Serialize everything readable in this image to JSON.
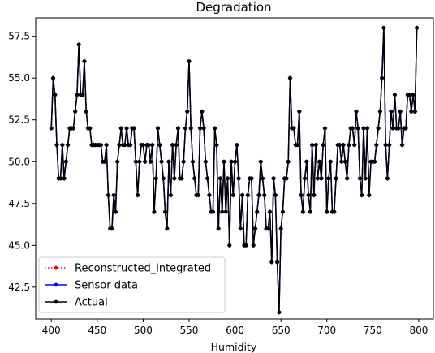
{
  "chart_data": {
    "type": "line",
    "title": "Degradation",
    "xlabel": "Humidity",
    "ylabel": "",
    "xlim": [
      383,
      816
    ],
    "ylim": [
      40.6,
      58.6
    ],
    "xticks": [
      400,
      450,
      500,
      550,
      600,
      650,
      700,
      750,
      800
    ],
    "yticks": [
      42.5,
      45.0,
      47.5,
      50.0,
      52.5,
      55.0,
      57.5
    ],
    "legend_position": "lower-left",
    "x": [
      400,
      402,
      404,
      406,
      408,
      410,
      412,
      414,
      416,
      418,
      420,
      422,
      424,
      426,
      428,
      430,
      432,
      434,
      436,
      438,
      440,
      442,
      444,
      446,
      448,
      450,
      452,
      454,
      456,
      458,
      460,
      462,
      464,
      466,
      468,
      470,
      472,
      474,
      476,
      478,
      480,
      482,
      484,
      486,
      488,
      490,
      492,
      494,
      496,
      498,
      500,
      502,
      504,
      506,
      508,
      510,
      512,
      514,
      516,
      518,
      520,
      522,
      524,
      526,
      528,
      530,
      532,
      534,
      536,
      538,
      540,
      542,
      544,
      546,
      548,
      550,
      552,
      554,
      556,
      558,
      560,
      562,
      564,
      566,
      568,
      570,
      572,
      574,
      576,
      578,
      580,
      582,
      584,
      586,
      588,
      590,
      592,
      594,
      596,
      598,
      600,
      602,
      604,
      606,
      608,
      610,
      612,
      614,
      616,
      618,
      620,
      622,
      624,
      626,
      628,
      630,
      632,
      634,
      636,
      638,
      640,
      642,
      644,
      646,
      648,
      650,
      652,
      654,
      656,
      658,
      660,
      662,
      664,
      666,
      668,
      670,
      672,
      674,
      676,
      678,
      680,
      682,
      684,
      686,
      688,
      690,
      692,
      694,
      696,
      698,
      700,
      702,
      704,
      706,
      708,
      710,
      712,
      714,
      716,
      718,
      720,
      722,
      724,
      726,
      728,
      730,
      732,
      734,
      736,
      738,
      740,
      742,
      744,
      746,
      748,
      750,
      752,
      754,
      756,
      758,
      760,
      762,
      764,
      766,
      768,
      770,
      772,
      774,
      776,
      778,
      780,
      782,
      784,
      786,
      788,
      790,
      792,
      794,
      796,
      798
    ],
    "series": [
      {
        "name": "Reconstructed_integrated",
        "color": "#ff0000",
        "style": "dotted",
        "marker": "diamond",
        "values": [
          52,
          55,
          54,
          51,
          49,
          49,
          51,
          49,
          50,
          51,
          52,
          52,
          52,
          53,
          54,
          57,
          54,
          54,
          56,
          53,
          52,
          52,
          51,
          51,
          51,
          51,
          51,
          51,
          50,
          50,
          51,
          48,
          46,
          46,
          48,
          47,
          50,
          51,
          52,
          51,
          51,
          52,
          51,
          51,
          52,
          52,
          50,
          48,
          50,
          51,
          51,
          50,
          51,
          51,
          50,
          51,
          47,
          49,
          52,
          51,
          50,
          49,
          47,
          46,
          50,
          48,
          51,
          49,
          51,
          52,
          49,
          49,
          50,
          52,
          53,
          56,
          52,
          50,
          49,
          48,
          48,
          52,
          53,
          52,
          50,
          49,
          48,
          47,
          47,
          52,
          51,
          46,
          49,
          47,
          50,
          47,
          49,
          45,
          50,
          48,
          50,
          51,
          49,
          46,
          48,
          45,
          45,
          48,
          49,
          49,
          45,
          46,
          47,
          48,
          50,
          49,
          48,
          46,
          46,
          47,
          44,
          49,
          48,
          44,
          41,
          46,
          47,
          49,
          49,
          50,
          55,
          52,
          52,
          51,
          51,
          53,
          48,
          47,
          49,
          50,
          48,
          47,
          51,
          48,
          51,
          49,
          50,
          49,
          51,
          52,
          47,
          49,
          50,
          47,
          47,
          49,
          51,
          51,
          50,
          51,
          50,
          49,
          51,
          52,
          52,
          51,
          53,
          52,
          49,
          48,
          52,
          49,
          52,
          48,
          50,
          50,
          50,
          51,
          52,
          53,
          55,
          58,
          51,
          49,
          51,
          53,
          52,
          54,
          52,
          52,
          53,
          51,
          52,
          52,
          54,
          54,
          53,
          54,
          53,
          58
        ]
      },
      {
        "name": "Sensor data",
        "color": "#0000ff",
        "style": "solid",
        "marker": "circle",
        "values": [
          52,
          55,
          54,
          51,
          49,
          49,
          51,
          49,
          50,
          51,
          52,
          52,
          52,
          53,
          54,
          57,
          54,
          54,
          56,
          53,
          52,
          52,
          51,
          51,
          51,
          51,
          51,
          51,
          50,
          50,
          51,
          48,
          46,
          46,
          48,
          47,
          50,
          51,
          52,
          51,
          51,
          52,
          51,
          51,
          52,
          52,
          50,
          48,
          50,
          51,
          51,
          50,
          51,
          51,
          50,
          51,
          47,
          49,
          52,
          51,
          50,
          49,
          47,
          46,
          50,
          48,
          51,
          49,
          51,
          52,
          49,
          49,
          50,
          52,
          53,
          56,
          52,
          50,
          49,
          48,
          48,
          52,
          53,
          52,
          50,
          49,
          48,
          47,
          47,
          52,
          51,
          46,
          49,
          47,
          50,
          47,
          49,
          45,
          50,
          48,
          50,
          51,
          49,
          46,
          48,
          45,
          45,
          48,
          49,
          49,
          45,
          46,
          47,
          48,
          50,
          49,
          48,
          46,
          46,
          47,
          44,
          49,
          48,
          44,
          41,
          46,
          47,
          49,
          49,
          50,
          55,
          52,
          52,
          51,
          51,
          53,
          48,
          47,
          49,
          50,
          48,
          47,
          51,
          48,
          51,
          49,
          50,
          49,
          51,
          52,
          47,
          49,
          50,
          47,
          47,
          49,
          51,
          51,
          50,
          51,
          50,
          49,
          51,
          52,
          52,
          51,
          53,
          52,
          49,
          48,
          52,
          49,
          52,
          48,
          50,
          50,
          50,
          51,
          52,
          53,
          55,
          58,
          51,
          49,
          51,
          53,
          52,
          54,
          52,
          52,
          53,
          51,
          52,
          52,
          54,
          54,
          53,
          54,
          53,
          58
        ]
      },
      {
        "name": "Actual",
        "color": "#000000",
        "style": "solid",
        "marker": "circle",
        "values": [
          52,
          55,
          54,
          51,
          49,
          49,
          51,
          49,
          50,
          51,
          52,
          52,
          52,
          53,
          54,
          57,
          54,
          54,
          56,
          53,
          52,
          52,
          51,
          51,
          51,
          51,
          51,
          51,
          50,
          50,
          51,
          48,
          46,
          46,
          48,
          47,
          50,
          51,
          52,
          51,
          51,
          52,
          51,
          51,
          52,
          52,
          50,
          48,
          50,
          51,
          51,
          50,
          51,
          51,
          50,
          51,
          47,
          49,
          52,
          51,
          50,
          49,
          47,
          46,
          50,
          48,
          51,
          49,
          51,
          52,
          49,
          49,
          50,
          52,
          53,
          56,
          52,
          50,
          49,
          48,
          48,
          52,
          53,
          52,
          50,
          49,
          48,
          47,
          47,
          52,
          51,
          46,
          49,
          47,
          50,
          47,
          49,
          45,
          50,
          48,
          50,
          51,
          49,
          46,
          48,
          45,
          45,
          48,
          49,
          49,
          45,
          46,
          47,
          48,
          50,
          49,
          48,
          46,
          46,
          47,
          44,
          49,
          48,
          44,
          41,
          46,
          47,
          49,
          49,
          50,
          55,
          52,
          52,
          51,
          51,
          53,
          48,
          47,
          49,
          50,
          48,
          47,
          51,
          48,
          51,
          49,
          50,
          49,
          51,
          52,
          47,
          49,
          50,
          47,
          47,
          49,
          51,
          51,
          50,
          51,
          50,
          49,
          51,
          52,
          52,
          51,
          53,
          52,
          49,
          48,
          52,
          49,
          52,
          48,
          50,
          50,
          50,
          51,
          52,
          53,
          55,
          58,
          51,
          49,
          51,
          53,
          52,
          54,
          52,
          52,
          53,
          51,
          52,
          52,
          54,
          54,
          53,
          54,
          53,
          58
        ]
      }
    ]
  }
}
